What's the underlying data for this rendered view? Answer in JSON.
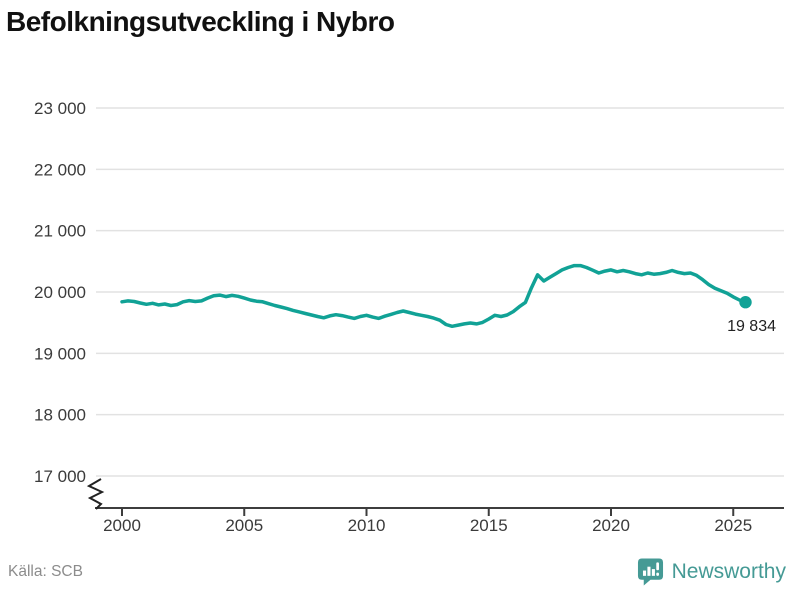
{
  "chart_data": {
    "type": "line",
    "title": "Befolkningsutveckling i Nybro",
    "xlabel": "",
    "ylabel": "",
    "grid": "horizontal",
    "legend": "none",
    "axis_break_at_bottom": true,
    "line_color": "#11a296",
    "x_start": 2000,
    "x_step": 0.25,
    "xlim": [
      2000,
      2025.6
    ],
    "ylim": [
      17000,
      23000
    ],
    "y_ticks": [
      {
        "value": 17000,
        "label": "17 000"
      },
      {
        "value": 18000,
        "label": "18 000"
      },
      {
        "value": 19000,
        "label": "19 000"
      },
      {
        "value": 20000,
        "label": "20 000"
      },
      {
        "value": 21000,
        "label": "21 000"
      },
      {
        "value": 22000,
        "label": "22 000"
      },
      {
        "value": 23000,
        "label": "23 000"
      }
    ],
    "x_ticks": [
      {
        "value": 2000,
        "label": "2000"
      },
      {
        "value": 2005,
        "label": "2005"
      },
      {
        "value": 2010,
        "label": "2010"
      },
      {
        "value": 2015,
        "label": "2015"
      },
      {
        "value": 2020,
        "label": "2020"
      },
      {
        "value": 2025,
        "label": "2025"
      }
    ],
    "values": [
      19840,
      19855,
      19845,
      19820,
      19800,
      19815,
      19790,
      19805,
      19780,
      19795,
      19840,
      19860,
      19845,
      19855,
      19900,
      19940,
      19950,
      19925,
      19945,
      19930,
      19900,
      19870,
      19850,
      19840,
      19810,
      19780,
      19755,
      19730,
      19700,
      19675,
      19650,
      19625,
      19600,
      19580,
      19610,
      19630,
      19615,
      19590,
      19570,
      19600,
      19620,
      19590,
      19570,
      19605,
      19635,
      19665,
      19690,
      19665,
      19640,
      19620,
      19600,
      19575,
      19540,
      19470,
      19440,
      19460,
      19480,
      19495,
      19480,
      19505,
      19560,
      19620,
      19600,
      19625,
      19680,
      19760,
      19830,
      20070,
      20280,
      20180,
      20240,
      20300,
      20360,
      20400,
      20430,
      20430,
      20400,
      20355,
      20310,
      20340,
      20360,
      20330,
      20350,
      20330,
      20300,
      20280,
      20310,
      20290,
      20300,
      20320,
      20350,
      20320,
      20300,
      20310,
      20270,
      20200,
      20120,
      20060,
      20020,
      19980,
      19920,
      19870,
      19834
    ],
    "end_value": 19834,
    "end_label": "19 834"
  },
  "footer": {
    "source": "Källa: SCB",
    "logo_text": "Newsworthy"
  },
  "colors": {
    "line": "#11a296",
    "grid": "#e2e2e2",
    "axis": "#3d3d3d",
    "axis_text": "#3b3b3b",
    "title_text": "#111111",
    "source_text": "#8c8c8c",
    "logo": "#459a95",
    "annotation_text": "#222222"
  }
}
